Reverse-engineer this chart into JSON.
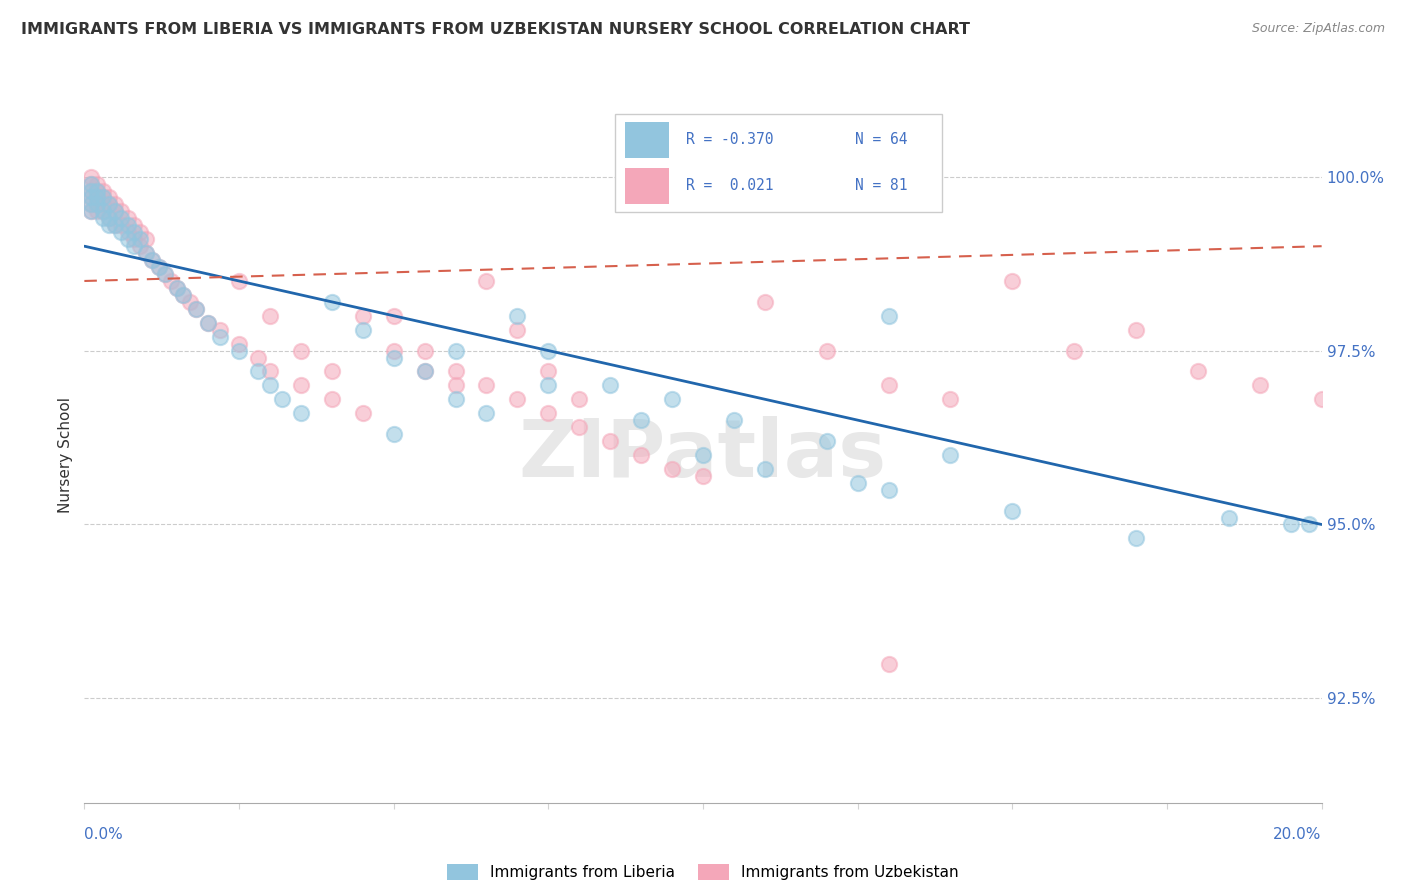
{
  "title": "IMMIGRANTS FROM LIBERIA VS IMMIGRANTS FROM UZBEKISTAN NURSERY SCHOOL CORRELATION CHART",
  "source": "Source: ZipAtlas.com",
  "ylabel": "Nursery School",
  "ytick_labels": [
    "92.5%",
    "95.0%",
    "97.5%",
    "100.0%"
  ],
  "ytick_values": [
    0.925,
    0.95,
    0.975,
    1.0
  ],
  "xlim": [
    0.0,
    0.2
  ],
  "ylim": [
    0.91,
    1.01
  ],
  "color_liberia": "#92c5de",
  "color_uzbekistan": "#f4a7b9",
  "color_trendline_liberia": "#2166ac",
  "color_trendline_uzbekistan": "#d6604d",
  "watermark_text": "ZIPatlas",
  "legend_r1": "R = -0.370",
  "legend_n1": "N = 64",
  "legend_r2": "R =  0.021",
  "legend_n2": "N = 81",
  "trendline_lib_x0": 0.0,
  "trendline_lib_y0": 0.99,
  "trendline_lib_x1": 0.2,
  "trendline_lib_y1": 0.95,
  "trendline_uzb_x0": 0.0,
  "trendline_uzb_y0": 0.985,
  "trendline_uzb_x1": 0.2,
  "trendline_uzb_y1": 0.99,
  "lib_x": [
    0.001,
    0.001,
    0.001,
    0.001,
    0.001,
    0.002,
    0.002,
    0.002,
    0.003,
    0.003,
    0.003,
    0.004,
    0.004,
    0.004,
    0.005,
    0.005,
    0.006,
    0.006,
    0.007,
    0.007,
    0.008,
    0.008,
    0.009,
    0.01,
    0.011,
    0.012,
    0.013,
    0.015,
    0.016,
    0.018,
    0.02,
    0.022,
    0.025,
    0.028,
    0.03,
    0.032,
    0.035,
    0.04,
    0.045,
    0.05,
    0.055,
    0.06,
    0.065,
    0.07,
    0.075,
    0.085,
    0.095,
    0.105,
    0.12,
    0.13,
    0.14,
    0.06,
    0.075,
    0.09,
    0.1,
    0.11,
    0.125,
    0.15,
    0.17,
    0.185,
    0.195,
    0.198,
    0.05,
    0.13
  ],
  "lib_y": [
    0.999,
    0.998,
    0.997,
    0.996,
    0.995,
    0.998,
    0.997,
    0.996,
    0.997,
    0.995,
    0.994,
    0.996,
    0.994,
    0.993,
    0.995,
    0.993,
    0.994,
    0.992,
    0.993,
    0.991,
    0.992,
    0.99,
    0.991,
    0.989,
    0.988,
    0.987,
    0.986,
    0.984,
    0.983,
    0.981,
    0.979,
    0.977,
    0.975,
    0.972,
    0.97,
    0.968,
    0.966,
    0.982,
    0.978,
    0.974,
    0.972,
    0.968,
    0.966,
    0.98,
    0.975,
    0.97,
    0.968,
    0.965,
    0.962,
    0.98,
    0.96,
    0.975,
    0.97,
    0.965,
    0.96,
    0.958,
    0.956,
    0.952,
    0.948,
    0.951,
    0.95,
    0.95,
    0.963,
    0.955
  ],
  "uzb_x": [
    0.001,
    0.001,
    0.001,
    0.001,
    0.001,
    0.001,
    0.002,
    0.002,
    0.002,
    0.002,
    0.002,
    0.003,
    0.003,
    0.003,
    0.003,
    0.004,
    0.004,
    0.004,
    0.005,
    0.005,
    0.005,
    0.006,
    0.006,
    0.007,
    0.007,
    0.008,
    0.008,
    0.009,
    0.009,
    0.01,
    0.01,
    0.011,
    0.012,
    0.013,
    0.014,
    0.015,
    0.016,
    0.017,
    0.018,
    0.02,
    0.022,
    0.025,
    0.028,
    0.03,
    0.035,
    0.04,
    0.045,
    0.05,
    0.055,
    0.06,
    0.065,
    0.07,
    0.075,
    0.08,
    0.085,
    0.09,
    0.095,
    0.1,
    0.11,
    0.12,
    0.13,
    0.14,
    0.15,
    0.16,
    0.17,
    0.18,
    0.19,
    0.2,
    0.025,
    0.03,
    0.035,
    0.04,
    0.045,
    0.05,
    0.055,
    0.06,
    0.065,
    0.07,
    0.075,
    0.08,
    0.13
  ],
  "uzb_y": [
    1.0,
    0.999,
    0.998,
    0.997,
    0.996,
    0.995,
    0.999,
    0.998,
    0.997,
    0.996,
    0.995,
    0.998,
    0.997,
    0.996,
    0.995,
    0.997,
    0.996,
    0.994,
    0.996,
    0.995,
    0.993,
    0.995,
    0.993,
    0.994,
    0.992,
    0.993,
    0.991,
    0.992,
    0.99,
    0.991,
    0.989,
    0.988,
    0.987,
    0.986,
    0.985,
    0.984,
    0.983,
    0.982,
    0.981,
    0.979,
    0.978,
    0.976,
    0.974,
    0.972,
    0.97,
    0.968,
    0.966,
    0.98,
    0.975,
    0.972,
    0.97,
    0.968,
    0.966,
    0.964,
    0.962,
    0.96,
    0.958,
    0.957,
    0.982,
    0.975,
    0.97,
    0.968,
    0.985,
    0.975,
    0.978,
    0.972,
    0.97,
    0.968,
    0.985,
    0.98,
    0.975,
    0.972,
    0.98,
    0.975,
    0.972,
    0.97,
    0.985,
    0.978,
    0.972,
    0.968,
    0.93
  ]
}
